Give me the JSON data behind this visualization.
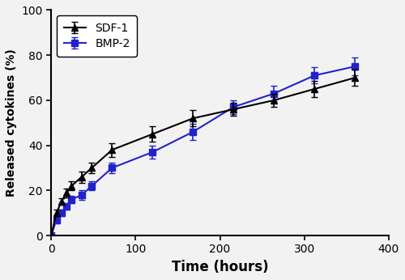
{
  "sdf1_x": [
    0,
    6,
    12,
    18,
    24,
    36,
    48,
    72,
    120,
    168,
    216,
    264,
    312,
    360
  ],
  "sdf1_y": [
    0,
    10,
    15,
    19,
    22,
    26,
    30,
    38,
    45,
    52,
    56,
    60,
    65,
    70
  ],
  "sdf1_err": [
    0,
    1.5,
    1.5,
    2.0,
    2.0,
    2.5,
    2.5,
    3.0,
    3.5,
    3.5,
    3.0,
    3.0,
    3.5,
    3.5
  ],
  "bmp2_x": [
    0,
    6,
    12,
    18,
    24,
    36,
    48,
    72,
    120,
    168,
    216,
    264,
    312,
    360
  ],
  "bmp2_y": [
    0,
    7,
    10,
    13,
    16,
    18,
    22,
    30,
    37,
    46,
    57,
    63,
    71,
    75
  ],
  "bmp2_err": [
    0,
    1.5,
    1.5,
    1.5,
    1.5,
    2.0,
    2.0,
    2.5,
    3.0,
    3.5,
    3.0,
    3.5,
    3.5,
    4.0
  ],
  "sdf1_color": "#000000",
  "bmp2_color": "#2222cc",
  "xlabel": "Time (hours)",
  "ylabel": "Released cytokines (%)",
  "xlim": [
    0,
    400
  ],
  "ylim": [
    0,
    100
  ],
  "xticks": [
    0,
    100,
    200,
    300,
    400
  ],
  "yticks": [
    0,
    20,
    40,
    60,
    80,
    100
  ],
  "legend_labels": [
    "SDF-1",
    "BMP-2"
  ],
  "sdf1_marker": "^",
  "bmp2_marker": "s",
  "linewidth": 1.5,
  "markersize": 6,
  "capsize": 3,
  "elinewidth": 1.2,
  "figsize": [
    5.0,
    3.46
  ],
  "dpi": 100,
  "bg_color": "#f0f0f0"
}
